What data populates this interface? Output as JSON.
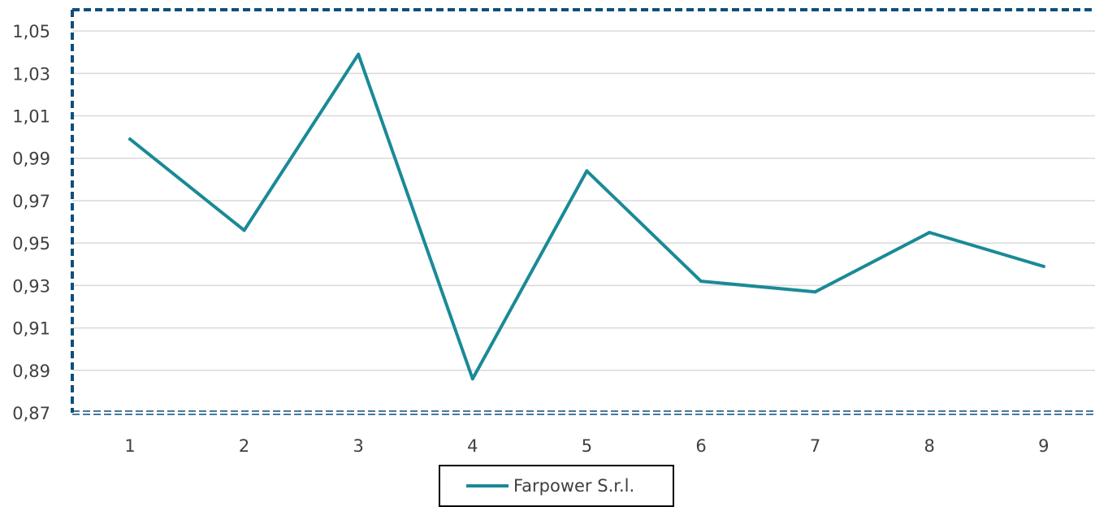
{
  "chart_data": {
    "type": "line",
    "categories": [
      "1",
      "2",
      "3",
      "4",
      "5",
      "6",
      "7",
      "8",
      "9"
    ],
    "series": [
      {
        "name": "Farpower S.r.l.",
        "values": [
          0.999,
          0.956,
          1.039,
          0.886,
          0.984,
          0.932,
          0.927,
          0.955,
          0.939
        ],
        "color": "#1a8a96"
      }
    ],
    "ylim": [
      0.87,
      1.06
    ],
    "yticks": [
      "0,87",
      "0,89",
      "0,91",
      "0,93",
      "0,95",
      "0,97",
      "0,99",
      "1,01",
      "1,03",
      "1,05"
    ],
    "ytick_values": [
      0.87,
      0.89,
      0.91,
      0.93,
      0.95,
      0.97,
      0.99,
      1.01,
      1.03,
      1.05
    ],
    "grid": true,
    "legend": "bottom",
    "frame_color": "#0d4f7c",
    "grid_color": "#d9d9d9"
  }
}
